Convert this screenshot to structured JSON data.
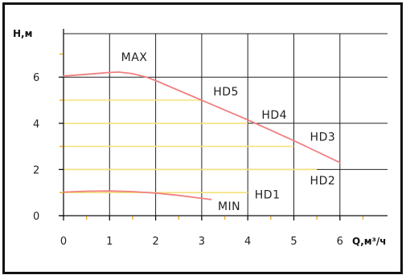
{
  "chart_data": {
    "type": "line",
    "ylabel": "H,м",
    "xlabel": "Q,м³/ч",
    "xlim": [
      0,
      7
    ],
    "ylim": [
      0,
      7.5
    ],
    "x_ticks": [
      0,
      1,
      2,
      3,
      4,
      5,
      6
    ],
    "y_ticks": [
      0,
      2,
      4,
      6
    ],
    "grid": true,
    "colors": {
      "curve": "#f08080",
      "speed_lines": "#f5e27a",
      "grid": "#222222",
      "minor_tick": "#f0b030"
    },
    "series": [
      {
        "name": "MAX",
        "x": [
          0,
          0.5,
          1.0,
          1.2,
          1.5,
          1.8,
          2.0,
          3.0,
          4.0,
          5.0,
          6.0
        ],
        "y": [
          6.05,
          6.12,
          6.2,
          6.22,
          6.15,
          6.0,
          5.85,
          5.0,
          4.15,
          3.25,
          2.3
        ]
      },
      {
        "name": "MIN",
        "x": [
          0,
          0.5,
          1.0,
          1.5,
          2.0,
          2.5,
          3.0,
          3.2
        ],
        "y": [
          1.02,
          1.06,
          1.07,
          1.04,
          0.98,
          0.88,
          0.75,
          0.7
        ]
      }
    ],
    "speed_levels": [
      {
        "name": "HD5",
        "y": 5.0,
        "x_end": 3.0
      },
      {
        "name": "HD4",
        "y": 4.0,
        "x_end": 4.0
      },
      {
        "name": "HD3",
        "y": 3.0,
        "x_end": 5.0
      },
      {
        "name": "HD2",
        "y": 2.0,
        "x_end": 5.5
      },
      {
        "name": "HD1",
        "y": 1.0,
        "x_end": 4.0
      }
    ],
    "annotations": [
      {
        "text": "MAX",
        "x": 1.25,
        "y": 6.7
      },
      {
        "text": "HD5",
        "x": 3.25,
        "y": 5.2
      },
      {
        "text": "HD4",
        "x": 4.3,
        "y": 4.2
      },
      {
        "text": "HD3",
        "x": 5.35,
        "y": 3.25
      },
      {
        "text": "HD2",
        "x": 5.35,
        "y": 1.35
      },
      {
        "text": "HD1",
        "x": 4.15,
        "y": 0.75
      },
      {
        "text": "MIN",
        "x": 3.35,
        "y": 0.25
      }
    ]
  }
}
